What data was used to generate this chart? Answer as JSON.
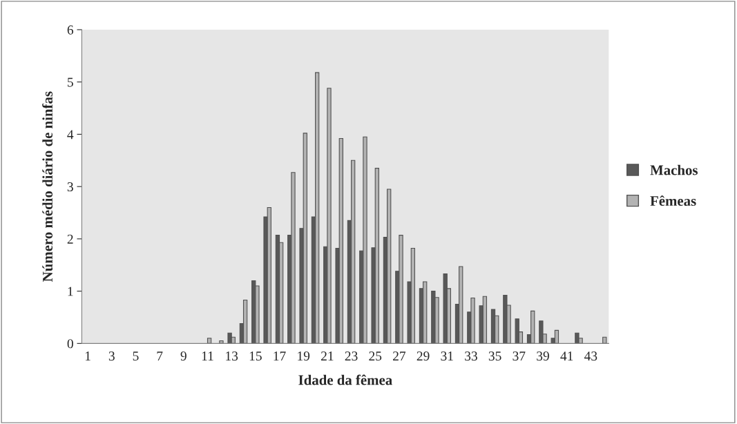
{
  "chart_data": {
    "type": "bar",
    "xlabel": "Idade da fêmea",
    "ylabel": "Número médio diário de ninfas",
    "categories": [
      "1",
      null,
      "3",
      null,
      "5",
      null,
      "7",
      null,
      "9",
      null,
      "11",
      null,
      "13",
      null,
      "15",
      null,
      "17",
      null,
      "19",
      null,
      "21",
      null,
      "23",
      null,
      "25",
      null,
      "27",
      null,
      "29",
      null,
      "31",
      null,
      "33",
      null,
      "35",
      null,
      "37",
      null,
      "39",
      null,
      "41",
      null,
      "43",
      null
    ],
    "series": [
      {
        "name": "Machos",
        "color": "#595959",
        "values": [
          0,
          0,
          0,
          0,
          0,
          0,
          0,
          0,
          0,
          0,
          0,
          0,
          0.2,
          0.38,
          1.2,
          2.42,
          2.07,
          2.07,
          2.2,
          2.42,
          1.85,
          1.82,
          2.35,
          1.77,
          1.83,
          2.03,
          1.38,
          1.18,
          1.05,
          1.0,
          1.33,
          0.75,
          0.6,
          0.72,
          0.65,
          0.92,
          0.47,
          0.17,
          0.43,
          0.1,
          0,
          0.2,
          0,
          0
        ]
      },
      {
        "name": "Fêmeas",
        "color": "#b3b3b3",
        "values": [
          0,
          0,
          0,
          0,
          0,
          0,
          0,
          0,
          0,
          0,
          0.1,
          0.05,
          0.12,
          0.83,
          1.1,
          2.6,
          1.93,
          3.27,
          4.02,
          5.18,
          4.88,
          3.92,
          3.5,
          3.95,
          3.35,
          2.95,
          2.07,
          1.82,
          1.18,
          0.88,
          1.05,
          1.47,
          0.87,
          0.9,
          0.53,
          0.73,
          0.22,
          0.62,
          0.18,
          0.25,
          0,
          0.1,
          0,
          0.12
        ]
      }
    ],
    "ylim": [
      0,
      6
    ],
    "yticks": [
      0,
      1,
      2,
      3,
      4,
      5,
      6
    ],
    "grid": false,
    "legend": "right"
  }
}
